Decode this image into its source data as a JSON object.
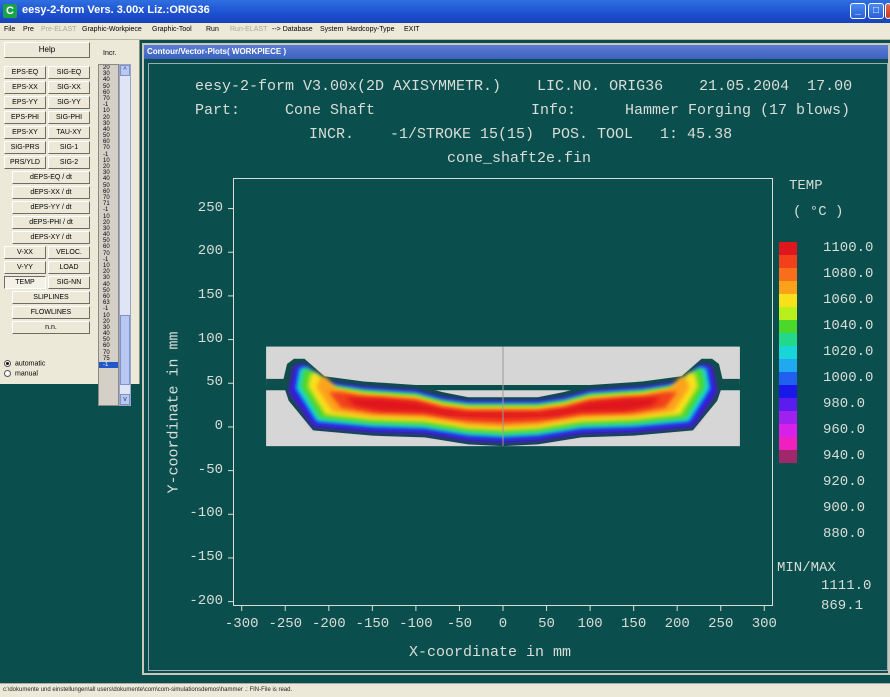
{
  "window": {
    "title": "eesy-2-form Vers. 3.00x   Liz.:ORIG36",
    "app_icon": "C",
    "buttons": {
      "minimize": "_",
      "maximize": "□",
      "close": "x"
    }
  },
  "menu": [
    {
      "label": "File",
      "disabled": false
    },
    {
      "label": "Pre",
      "disabled": false
    },
    {
      "label": "Pre-ELAST",
      "disabled": true
    },
    {
      "label": "Graphic-Workpiece",
      "disabled": false
    },
    {
      "label": "Graphic-Tool",
      "disabled": false
    },
    {
      "label": "Run",
      "disabled": false
    },
    {
      "label": "Run-ELAST",
      "disabled": true
    },
    {
      "label": "--> Database",
      "disabled": false
    },
    {
      "label": "System",
      "disabled": false
    },
    {
      "label": "Hardcopy-Type",
      "disabled": false
    },
    {
      "label": "EXIT",
      "disabled": false
    }
  ],
  "panel": {
    "help": "Help",
    "incr_label": "Incr.",
    "buttons": [
      "EPS-EQ",
      "SIG-EQ",
      "EPS-XX",
      "SIG-XX",
      "EPS-YY",
      "SIG-YY",
      "EPS-PHI",
      "SIG-PHI",
      "EPS-XY",
      "TAU-XY",
      "SIG-PRS",
      "SIG-1",
      "PRS/YLD",
      "SIG-2"
    ],
    "wide_buttons": [
      "dEPS-EQ / dt",
      "dEPS-XX / dt",
      "dEPS-YY / dt",
      "dEPS-PHI / dt",
      "dEPS-XY / dt"
    ],
    "buttons2": [
      "V-XX",
      "VELOC.",
      "V-YY",
      "LOAD",
      "TEMP",
      "SIG-NN"
    ],
    "wide_buttons2": [
      "SLIPLINES",
      "FLOWLINES",
      "n.n."
    ],
    "selected": "TEMP",
    "incr_items": [
      "20",
      "30",
      "40",
      "50",
      "60",
      "70",
      "-1",
      "10",
      "20",
      "30",
      "40",
      "50",
      "60",
      "70",
      "-1",
      "10",
      "20",
      "30",
      "40",
      "50",
      "60",
      "70",
      "71",
      "-1",
      "10",
      "20",
      "30",
      "40",
      "50",
      "60",
      "70",
      "-1",
      "10",
      "20",
      "30",
      "40",
      "50",
      "60",
      "63",
      "-1",
      "10",
      "20",
      "30",
      "40",
      "50",
      "60",
      "70",
      "75",
      "-1"
    ],
    "incr_selected": "-1",
    "radio_automatic": "automatic",
    "radio_manual": "manual"
  },
  "plot": {
    "caption": "Contour/Vector-Plots( WORKPIECE )",
    "header_line1": "eesy-2-form V3.00x(2D AXISYMMETR.)    LIC.NO. ORIG36    21.05.2004  17.00",
    "part_label": "Part:",
    "part_value": "Cone Shaft",
    "info_label": "Info:",
    "info_value": "Hammer Forging (17 blows)",
    "header_line3": "INCR.    -1/STROKE 15(15)  POS. TOOL   1: 45.38",
    "filename": "cone_shaft2e.fin"
  },
  "chart_data": {
    "type": "heatmap",
    "title": "",
    "xlabel": "X-coordinate in mm",
    "ylabel": "Y-coordinate in mm",
    "xlim": [
      -310,
      310
    ],
    "ylim": [
      -205,
      285
    ],
    "x_ticks": [
      -300,
      -250,
      -200,
      -150,
      -100,
      -50,
      0,
      50,
      100,
      150,
      200,
      250,
      300
    ],
    "y_ticks": [
      250,
      200,
      150,
      100,
      50,
      0,
      -50,
      -100,
      -150,
      -200
    ],
    "quantity": "TEMP",
    "unit": "( °C )",
    "legend_levels": [
      1100.0,
      1080.0,
      1060.0,
      1040.0,
      1020.0,
      1000.0,
      980.0,
      960.0,
      940.0,
      920.0,
      900.0,
      880.0
    ],
    "legend_colors": [
      "#e0161e",
      "#f2401a",
      "#f86e1a",
      "#fca21a",
      "#f8e01a",
      "#b8f01e",
      "#4cd82a",
      "#22d88a",
      "#18d6d8",
      "#20a8f0",
      "#2060f0",
      "#1818e8",
      "#5c1cf0",
      "#a020f0",
      "#d820e8",
      "#f020c0",
      "#a0286a"
    ],
    "minmax_label": "MIN/MAX",
    "max": 1111.0,
    "min": 869.1,
    "tool_top_die": {
      "x": [
        -272,
        272
      ],
      "y_bottom": 48,
      "y_top": 92
    },
    "tool_bottom_die": {
      "x": [
        -272,
        272
      ],
      "y_bottom": -22,
      "y_top": 42
    }
  },
  "status": "c:\\dokumente und einstellungen\\all users\\dokumente\\com\\com-simulationsdemos\\hammer .: FIN-File is read."
}
